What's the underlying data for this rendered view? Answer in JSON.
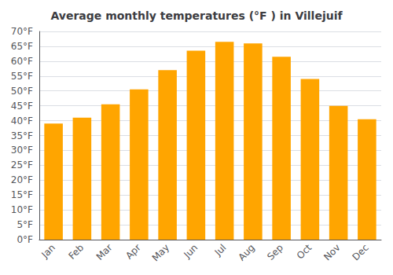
{
  "chart_data": {
    "type": "bar",
    "title": "Average monthly temperatures (°F ) in Villejuif",
    "categories": [
      "Jan",
      "Feb",
      "Mar",
      "Apr",
      "May",
      "Jun",
      "Jul",
      "Aug",
      "Sep",
      "Oct",
      "Nov",
      "Dec"
    ],
    "values": [
      39,
      41,
      45.5,
      50.5,
      57,
      63.5,
      66.5,
      66,
      61.5,
      54,
      45,
      40.5
    ],
    "color": "#FFA500",
    "ylim": [
      0,
      70
    ],
    "yticks": [
      {
        "value": 0,
        "label": "0°F"
      },
      {
        "value": 5,
        "label": "5°F"
      },
      {
        "value": 10,
        "label": "10°F"
      },
      {
        "value": 15,
        "label": "15°F"
      },
      {
        "value": 20,
        "label": "20°F"
      },
      {
        "value": 25,
        "label": "25°F"
      },
      {
        "value": 30,
        "label": "30°F"
      },
      {
        "value": 35,
        "label": "35°F"
      },
      {
        "value": 40,
        "label": "40°F"
      },
      {
        "value": 45,
        "label": "45°F"
      },
      {
        "value": 50,
        "label": "50°F"
      },
      {
        "value": 55,
        "label": "55°F"
      },
      {
        "value": 60,
        "label": "60°F"
      },
      {
        "value": 65,
        "label": "65°F"
      },
      {
        "value": 70,
        "label": "70°F"
      }
    ],
    "grid": true
  }
}
